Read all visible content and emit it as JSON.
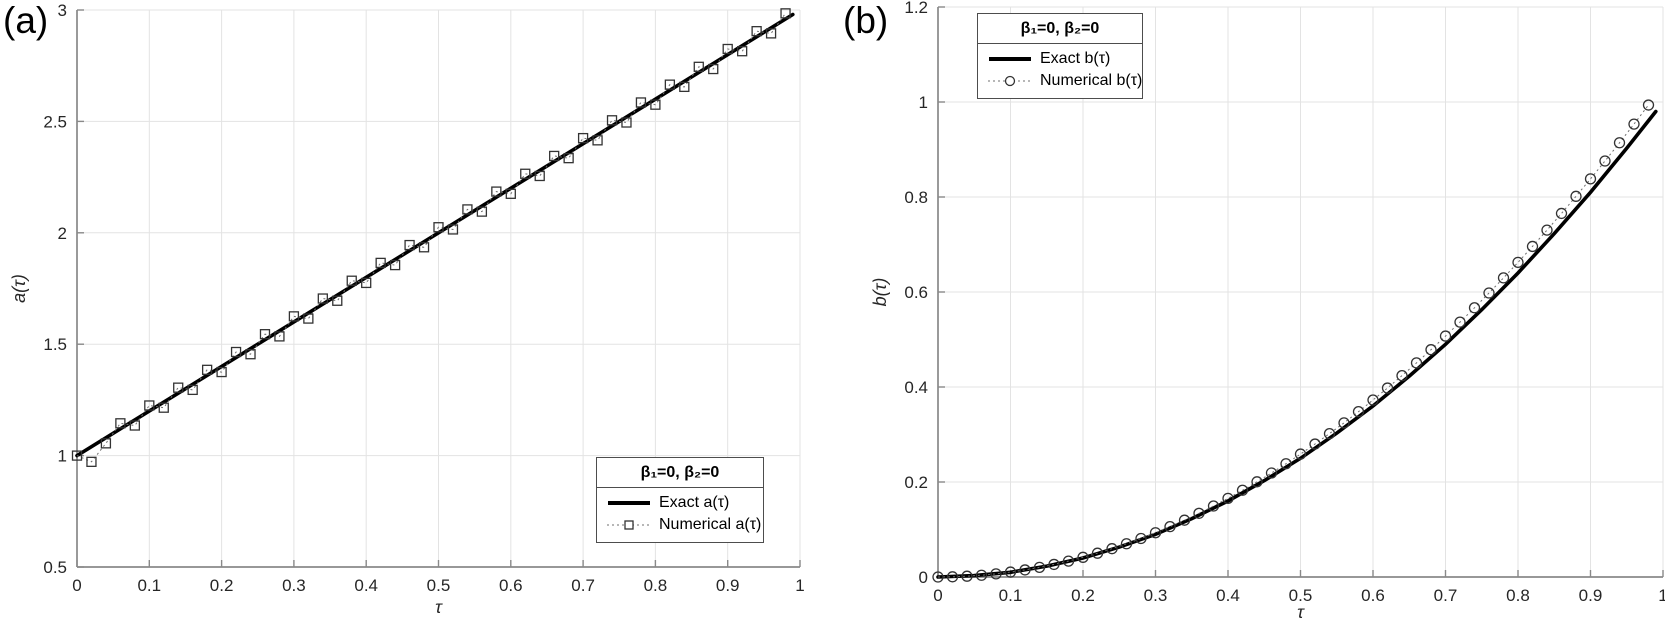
{
  "figure": {
    "background": "#ffffff",
    "line_color": "#000000",
    "marker_edge_color": "#333333",
    "grid_color": "#e3e3e3"
  },
  "chart_data": [
    {
      "id": "a",
      "type": "line",
      "panel_label": "(a)",
      "xlabel": "τ",
      "ylabel": "a(τ)",
      "xlim": [
        0,
        1
      ],
      "ylim": [
        0.5,
        3
      ],
      "grid": true,
      "xticks": [
        0,
        0.1,
        0.2,
        0.3,
        0.4,
        0.5,
        0.6,
        0.7,
        0.8,
        0.9,
        1
      ],
      "xtick_labels": [
        "0",
        "0.1",
        "0.2",
        "0.3",
        "0.4",
        "0.5",
        "0.6",
        "0.7",
        "0.8",
        "0.9",
        "1"
      ],
      "yticks": [
        0.5,
        1,
        1.5,
        2,
        2.5,
        3
      ],
      "ytick_labels": [
        "0.5",
        "1",
        "1.5",
        "2",
        "2.5",
        "3"
      ],
      "legend": {
        "title": "β₁=0, β₂=0",
        "position": "bottom-right",
        "entries": [
          {
            "label": "Exact a(τ)",
            "style": "exact",
            "marker": "none"
          },
          {
            "label": "Numerical a(τ)",
            "style": "numerical",
            "marker": "square"
          }
        ]
      },
      "series": [
        {
          "name": "Exact a(τ)",
          "style": "exact",
          "marker": "none",
          "x": [
            0,
            0.99
          ],
          "y": [
            1,
            2.98
          ]
        },
        {
          "name": "Numerical a(τ)",
          "style": "numerical",
          "marker": "square",
          "x": [
            0,
            0.02,
            0.04,
            0.06,
            0.08,
            0.1,
            0.12,
            0.14,
            0.16,
            0.18,
            0.2,
            0.22,
            0.24,
            0.26,
            0.28,
            0.3,
            0.32,
            0.34,
            0.36,
            0.38,
            0.4,
            0.42,
            0.44,
            0.46,
            0.48,
            0.5,
            0.52,
            0.54,
            0.56,
            0.58,
            0.6,
            0.62,
            0.64,
            0.66,
            0.68,
            0.7,
            0.72,
            0.74,
            0.76,
            0.78,
            0.8,
            0.82,
            0.84,
            0.86,
            0.88,
            0.9,
            0.92,
            0.94,
            0.96,
            0.98
          ],
          "y": [
            1.0,
            0.972,
            1.055,
            1.145,
            1.135,
            1.225,
            1.215,
            1.305,
            1.295,
            1.385,
            1.375,
            1.465,
            1.455,
            1.545,
            1.535,
            1.625,
            1.615,
            1.705,
            1.695,
            1.785,
            1.775,
            1.865,
            1.855,
            1.945,
            1.935,
            2.025,
            2.015,
            2.105,
            2.095,
            2.185,
            2.175,
            2.265,
            2.255,
            2.345,
            2.335,
            2.425,
            2.415,
            2.505,
            2.495,
            2.585,
            2.575,
            2.665,
            2.655,
            2.745,
            2.735,
            2.825,
            2.815,
            2.905,
            2.895,
            2.985
          ]
        }
      ]
    },
    {
      "id": "b",
      "type": "line",
      "panel_label": "(b)",
      "xlabel": "τ",
      "ylabel": "b(τ)",
      "xlim": [
        0,
        1
      ],
      "ylim": [
        0,
        1.2
      ],
      "grid": true,
      "xticks": [
        0,
        0.1,
        0.2,
        0.3,
        0.4,
        0.5,
        0.6,
        0.7,
        0.8,
        0.9,
        1
      ],
      "xtick_labels": [
        "0",
        "0.1",
        "0.2",
        "0.3",
        "0.4",
        "0.5",
        "0.6",
        "0.7",
        "0.8",
        "0.9",
        "1"
      ],
      "yticks": [
        0,
        0.2,
        0.4,
        0.6,
        0.8,
        1,
        1.2
      ],
      "ytick_labels": [
        "0",
        "0.2",
        "0.4",
        "0.6",
        "0.8",
        "1",
        "1.2"
      ],
      "legend": {
        "title": "β₁=0, β₂=0",
        "position": "top-left",
        "entries": [
          {
            "label": "Exact b(τ)",
            "style": "exact",
            "marker": "none"
          },
          {
            "label": "Numerical b(τ)",
            "style": "numerical",
            "marker": "circle"
          }
        ]
      },
      "series": [
        {
          "name": "Exact b(τ)",
          "style": "exact",
          "marker": "none",
          "x": [
            0,
            0.05,
            0.1,
            0.15,
            0.2,
            0.25,
            0.3,
            0.35,
            0.4,
            0.45,
            0.5,
            0.55,
            0.6,
            0.65,
            0.7,
            0.75,
            0.8,
            0.85,
            0.9,
            0.95,
            0.99
          ],
          "y": [
            0,
            0.003,
            0.01,
            0.023,
            0.04,
            0.063,
            0.09,
            0.123,
            0.16,
            0.203,
            0.25,
            0.303,
            0.36,
            0.423,
            0.49,
            0.563,
            0.64,
            0.723,
            0.81,
            0.903,
            0.98
          ]
        },
        {
          "name": "Numerical b(τ)",
          "style": "numerical",
          "marker": "circle",
          "x": [
            0,
            0.02,
            0.04,
            0.06,
            0.08,
            0.1,
            0.12,
            0.14,
            0.16,
            0.18,
            0.2,
            0.22,
            0.24,
            0.26,
            0.28,
            0.3,
            0.32,
            0.34,
            0.36,
            0.38,
            0.4,
            0.42,
            0.44,
            0.46,
            0.48,
            0.5,
            0.52,
            0.54,
            0.56,
            0.58,
            0.6,
            0.62,
            0.64,
            0.66,
            0.68,
            0.7,
            0.72,
            0.74,
            0.76,
            0.78,
            0.8,
            0.82,
            0.84,
            0.86,
            0.88,
            0.9,
            0.92,
            0.94,
            0.96,
            0.98
          ],
          "y": [
            0,
            0.0004,
            0.0017,
            0.0037,
            0.0066,
            0.0104,
            0.0149,
            0.0203,
            0.0265,
            0.0335,
            0.0414,
            0.0501,
            0.0596,
            0.07,
            0.0811,
            0.0932,
            0.106,
            0.1196,
            0.1341,
            0.1494,
            0.1656,
            0.1826,
            0.2004,
            0.219,
            0.2385,
            0.2588,
            0.2799,
            0.3018,
            0.3245,
            0.3481,
            0.3726,
            0.3978,
            0.4239,
            0.4508,
            0.4786,
            0.5072,
            0.5366,
            0.5668,
            0.5979,
            0.6297,
            0.6624,
            0.6959,
            0.7303,
            0.7654,
            0.8014,
            0.8382,
            0.8758,
            0.9142,
            0.9535,
            0.9936
          ]
        }
      ]
    }
  ]
}
